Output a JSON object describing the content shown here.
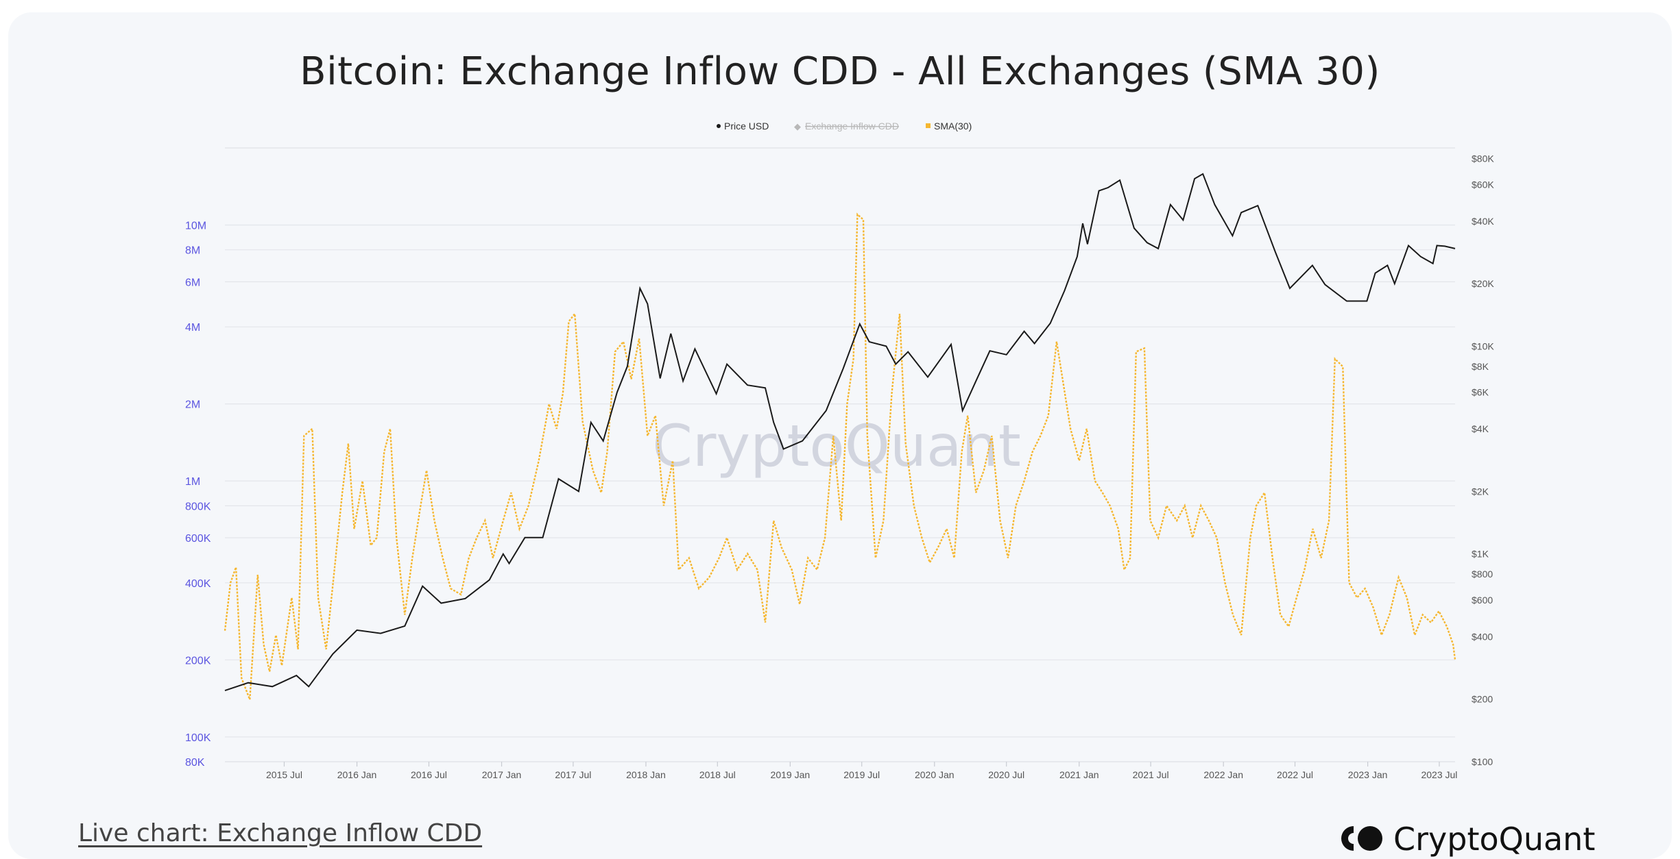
{
  "title": "Bitcoin: Exchange Inflow CDD - All Exchanges (SMA 30)",
  "watermark": "CryptoQuant",
  "footer": {
    "live_chart": "Live chart: Exchange Inflow CDD",
    "brand": "CryptoQuant"
  },
  "colors": {
    "price": "#1a1a1a",
    "sma": "#f5b731",
    "left_axis": "#5b55e0",
    "right_axis": "#555555",
    "grid": "#e3e5ea",
    "legend_disabled": "#b8b8b8"
  },
  "chart_data": {
    "type": "line",
    "legend": {
      "placement": "top-center",
      "items": [
        {
          "label": "Price USD",
          "enabled": true
        },
        {
          "label": "Exchange Inflow CDD",
          "enabled": false
        },
        {
          "label": "SMA(30)",
          "enabled": true
        }
      ]
    },
    "x_ticks": [
      "2015 Jul",
      "2016 Jan",
      "2016 Jul",
      "2017 Jan",
      "2017 Jul",
      "2018 Jan",
      "2018 Jul",
      "2019 Jan",
      "2019 Jul",
      "2020 Jan",
      "2020 Jul",
      "2021 Jan",
      "2021 Jul",
      "2022 Jan",
      "2022 Jul",
      "2023 Jan",
      "2023 Jul"
    ],
    "xlim": [
      "2015-02-01",
      "2023-08-10"
    ],
    "y_left": {
      "scale": "log",
      "range": [
        80000,
        20000000
      ],
      "ticks": [
        "80K",
        "100K",
        "200K",
        "400K",
        "600K",
        "800K",
        "1M",
        "2M",
        "4M",
        "6M",
        "8M",
        "10M"
      ],
      "tick_values": [
        80000,
        100000,
        200000,
        400000,
        600000,
        800000,
        1000000,
        2000000,
        4000000,
        6000000,
        8000000,
        10000000
      ]
    },
    "y_right": {
      "scale": "log",
      "range": [
        100,
        90000
      ],
      "ticks": [
        "$100",
        "$200",
        "$400",
        "$600",
        "$800",
        "$1K",
        "$2K",
        "$4K",
        "$6K",
        "$8K",
        "$10K",
        "$20K",
        "$40K",
        "$60K",
        "$80K"
      ],
      "tick_values": [
        100,
        200,
        400,
        600,
        800,
        1000,
        2000,
        4000,
        6000,
        8000,
        10000,
        20000,
        40000,
        60000,
        80000
      ]
    },
    "grid": true,
    "series": [
      {
        "name": "Price USD",
        "axis": "right",
        "points": [
          [
            "2015-02-01",
            220
          ],
          [
            "2015-04-01",
            240
          ],
          [
            "2015-06-01",
            230
          ],
          [
            "2015-08-01",
            260
          ],
          [
            "2015-09-01",
            230
          ],
          [
            "2015-11-01",
            330
          ],
          [
            "2016-01-01",
            430
          ],
          [
            "2016-03-01",
            415
          ],
          [
            "2016-05-01",
            450
          ],
          [
            "2016-06-15",
            700
          ],
          [
            "2016-08-01",
            580
          ],
          [
            "2016-10-01",
            610
          ],
          [
            "2016-12-01",
            750
          ],
          [
            "2017-01-05",
            1000
          ],
          [
            "2017-01-20",
            900
          ],
          [
            "2017-03-01",
            1200
          ],
          [
            "2017-04-15",
            1200
          ],
          [
            "2017-05-25",
            2300
          ],
          [
            "2017-07-15",
            2000
          ],
          [
            "2017-08-15",
            4300
          ],
          [
            "2017-09-15",
            3500
          ],
          [
            "2017-10-20",
            6000
          ],
          [
            "2017-11-15",
            8000
          ],
          [
            "2017-12-17",
            19000
          ],
          [
            "2018-01-05",
            16000
          ],
          [
            "2018-02-06",
            7000
          ],
          [
            "2018-03-05",
            11500
          ],
          [
            "2018-04-05",
            6800
          ],
          [
            "2018-05-05",
            9700
          ],
          [
            "2018-06-28",
            5900
          ],
          [
            "2018-07-25",
            8200
          ],
          [
            "2018-09-15",
            6500
          ],
          [
            "2018-10-30",
            6300
          ],
          [
            "2018-11-20",
            4300
          ],
          [
            "2018-12-15",
            3200
          ],
          [
            "2019-02-01",
            3500
          ],
          [
            "2019-04-02",
            4900
          ],
          [
            "2019-05-15",
            7800
          ],
          [
            "2019-06-26",
            12800
          ],
          [
            "2019-07-20",
            10500
          ],
          [
            "2019-09-01",
            10000
          ],
          [
            "2019-09-25",
            8200
          ],
          [
            "2019-10-26",
            9400
          ],
          [
            "2019-12-15",
            7100
          ],
          [
            "2020-02-12",
            10200
          ],
          [
            "2020-03-12",
            4900
          ],
          [
            "2020-04-15",
            6800
          ],
          [
            "2020-05-20",
            9500
          ],
          [
            "2020-07-01",
            9100
          ],
          [
            "2020-08-15",
            11800
          ],
          [
            "2020-09-10",
            10300
          ],
          [
            "2020-10-20",
            12900
          ],
          [
            "2020-11-25",
            18500
          ],
          [
            "2020-12-27",
            27000
          ],
          [
            "2021-01-10",
            39000
          ],
          [
            "2021-01-22",
            31000
          ],
          [
            "2021-02-20",
            56000
          ],
          [
            "2021-03-15",
            58000
          ],
          [
            "2021-04-14",
            63000
          ],
          [
            "2021-05-20",
            37000
          ],
          [
            "2021-06-22",
            31500
          ],
          [
            "2021-07-20",
            29500
          ],
          [
            "2021-08-20",
            48000
          ],
          [
            "2021-09-21",
            40500
          ],
          [
            "2021-10-20",
            64000
          ],
          [
            "2021-11-10",
            67500
          ],
          [
            "2021-12-10",
            48000
          ],
          [
            "2022-01-24",
            34000
          ],
          [
            "2022-02-15",
            44000
          ],
          [
            "2022-03-29",
            47500
          ],
          [
            "2022-05-12",
            28500
          ],
          [
            "2022-06-18",
            19000
          ],
          [
            "2022-08-14",
            24500
          ],
          [
            "2022-09-15",
            19800
          ],
          [
            "2022-11-09",
            16500
          ],
          [
            "2022-12-30",
            16500
          ],
          [
            "2023-01-20",
            22500
          ],
          [
            "2023-02-20",
            24500
          ],
          [
            "2023-03-10",
            20000
          ],
          [
            "2023-04-14",
            30500
          ],
          [
            "2023-05-15",
            27000
          ],
          [
            "2023-06-15",
            25000
          ],
          [
            "2023-06-25",
            30500
          ],
          [
            "2023-07-15",
            30300
          ],
          [
            "2023-08-10",
            29500
          ]
        ]
      },
      {
        "name": "SMA(30)",
        "axis": "left",
        "points": [
          [
            "2015-02-01",
            260000
          ],
          [
            "2015-02-15",
            400000
          ],
          [
            "2015-03-01",
            460000
          ],
          [
            "2015-03-15",
            170000
          ],
          [
            "2015-04-05",
            140000
          ],
          [
            "2015-04-25",
            430000
          ],
          [
            "2015-05-10",
            230000
          ],
          [
            "2015-05-25",
            180000
          ],
          [
            "2015-06-10",
            250000
          ],
          [
            "2015-06-25",
            190000
          ],
          [
            "2015-07-20",
            350000
          ],
          [
            "2015-08-05",
            220000
          ],
          [
            "2015-08-20",
            1500000
          ],
          [
            "2015-09-10",
            1600000
          ],
          [
            "2015-09-25",
            350000
          ],
          [
            "2015-10-15",
            220000
          ],
          [
            "2015-11-05",
            450000
          ],
          [
            "2015-11-25",
            900000
          ],
          [
            "2015-12-10",
            1400000
          ],
          [
            "2015-12-25",
            650000
          ],
          [
            "2016-01-15",
            1000000
          ],
          [
            "2016-02-05",
            560000
          ],
          [
            "2016-02-20",
            600000
          ],
          [
            "2016-03-10",
            1300000
          ],
          [
            "2016-03-25",
            1600000
          ],
          [
            "2016-04-10",
            600000
          ],
          [
            "2016-05-01",
            300000
          ],
          [
            "2016-05-20",
            500000
          ],
          [
            "2016-06-10",
            800000
          ],
          [
            "2016-06-25",
            1100000
          ],
          [
            "2016-07-15",
            700000
          ],
          [
            "2016-08-05",
            500000
          ],
          [
            "2016-08-25",
            380000
          ],
          [
            "2016-09-20",
            360000
          ],
          [
            "2016-10-10",
            500000
          ],
          [
            "2016-10-30",
            600000
          ],
          [
            "2016-11-20",
            700000
          ],
          [
            "2016-12-10",
            500000
          ],
          [
            "2017-01-05",
            700000
          ],
          [
            "2017-01-25",
            900000
          ],
          [
            "2017-02-15",
            650000
          ],
          [
            "2017-03-10",
            800000
          ],
          [
            "2017-04-05",
            1200000
          ],
          [
            "2017-05-01",
            2000000
          ],
          [
            "2017-05-20",
            1600000
          ],
          [
            "2017-06-05",
            2200000
          ],
          [
            "2017-06-20",
            4200000
          ],
          [
            "2017-07-05",
            4500000
          ],
          [
            "2017-07-25",
            1700000
          ],
          [
            "2017-08-20",
            1100000
          ],
          [
            "2017-09-10",
            900000
          ],
          [
            "2017-09-25",
            1300000
          ],
          [
            "2017-10-15",
            3200000
          ],
          [
            "2017-11-05",
            3500000
          ],
          [
            "2017-11-25",
            2500000
          ],
          [
            "2017-12-15",
            3600000
          ],
          [
            "2018-01-05",
            1500000
          ],
          [
            "2018-01-25",
            1800000
          ],
          [
            "2018-02-15",
            800000
          ],
          [
            "2018-03-10",
            1200000
          ],
          [
            "2018-03-25",
            450000
          ],
          [
            "2018-04-20",
            500000
          ],
          [
            "2018-05-15",
            380000
          ],
          [
            "2018-06-10",
            420000
          ],
          [
            "2018-07-05",
            500000
          ],
          [
            "2018-07-25",
            600000
          ],
          [
            "2018-08-20",
            450000
          ],
          [
            "2018-09-15",
            520000
          ],
          [
            "2018-10-10",
            450000
          ],
          [
            "2018-10-30",
            280000
          ],
          [
            "2018-11-20",
            700000
          ],
          [
            "2018-12-10",
            550000
          ],
          [
            "2019-01-05",
            450000
          ],
          [
            "2019-01-25",
            330000
          ],
          [
            "2019-02-15",
            500000
          ],
          [
            "2019-03-10",
            450000
          ],
          [
            "2019-03-30",
            600000
          ],
          [
            "2019-04-20",
            1500000
          ],
          [
            "2019-05-10",
            700000
          ],
          [
            "2019-05-25",
            2000000
          ],
          [
            "2019-06-10",
            3000000
          ],
          [
            "2019-06-20",
            11000000
          ],
          [
            "2019-07-05",
            10500000
          ],
          [
            "2019-07-15",
            1500000
          ],
          [
            "2019-08-05",
            500000
          ],
          [
            "2019-08-25",
            700000
          ],
          [
            "2019-09-15",
            2200000
          ],
          [
            "2019-10-05",
            4500000
          ],
          [
            "2019-10-20",
            1400000
          ],
          [
            "2019-11-10",
            800000
          ],
          [
            "2019-11-30",
            600000
          ],
          [
            "2019-12-20",
            480000
          ],
          [
            "2020-01-10",
            550000
          ],
          [
            "2020-02-01",
            650000
          ],
          [
            "2020-02-20",
            500000
          ],
          [
            "2020-03-10",
            1300000
          ],
          [
            "2020-03-25",
            1800000
          ],
          [
            "2020-04-15",
            900000
          ],
          [
            "2020-05-05",
            1100000
          ],
          [
            "2020-05-25",
            1500000
          ],
          [
            "2020-06-15",
            700000
          ],
          [
            "2020-07-05",
            500000
          ],
          [
            "2020-07-25",
            800000
          ],
          [
            "2020-08-15",
            1000000
          ],
          [
            "2020-09-05",
            1300000
          ],
          [
            "2020-09-25",
            1500000
          ],
          [
            "2020-10-15",
            1800000
          ],
          [
            "2020-11-05",
            3500000
          ],
          [
            "2020-11-20",
            2500000
          ],
          [
            "2020-12-10",
            1600000
          ],
          [
            "2021-01-01",
            1200000
          ],
          [
            "2021-01-20",
            1600000
          ],
          [
            "2021-02-10",
            1000000
          ],
          [
            "2021-03-01",
            900000
          ],
          [
            "2021-03-20",
            800000
          ],
          [
            "2021-04-10",
            650000
          ],
          [
            "2021-04-25",
            450000
          ],
          [
            "2021-05-10",
            500000
          ],
          [
            "2021-05-25",
            3200000
          ],
          [
            "2021-06-15",
            3300000
          ],
          [
            "2021-06-30",
            700000
          ],
          [
            "2021-07-20",
            600000
          ],
          [
            "2021-08-10",
            800000
          ],
          [
            "2021-09-05",
            700000
          ],
          [
            "2021-09-25",
            800000
          ],
          [
            "2021-10-15",
            600000
          ],
          [
            "2021-11-05",
            800000
          ],
          [
            "2021-11-25",
            700000
          ],
          [
            "2021-12-15",
            600000
          ],
          [
            "2022-01-05",
            400000
          ],
          [
            "2022-01-25",
            300000
          ],
          [
            "2022-02-15",
            250000
          ],
          [
            "2022-03-10",
            600000
          ],
          [
            "2022-03-25",
            800000
          ],
          [
            "2022-04-15",
            900000
          ],
          [
            "2022-05-05",
            500000
          ],
          [
            "2022-05-25",
            300000
          ],
          [
            "2022-06-15",
            270000
          ],
          [
            "2022-07-05",
            350000
          ],
          [
            "2022-07-25",
            450000
          ],
          [
            "2022-08-15",
            650000
          ],
          [
            "2022-09-05",
            500000
          ],
          [
            "2022-09-25",
            700000
          ],
          [
            "2022-10-10",
            3000000
          ],
          [
            "2022-10-30",
            2800000
          ],
          [
            "2022-11-15",
            400000
          ],
          [
            "2022-12-05",
            350000
          ],
          [
            "2022-12-25",
            380000
          ],
          [
            "2023-01-15",
            320000
          ],
          [
            "2023-02-05",
            250000
          ],
          [
            "2023-02-25",
            300000
          ],
          [
            "2023-03-20",
            420000
          ],
          [
            "2023-04-10",
            350000
          ],
          [
            "2023-04-30",
            250000
          ],
          [
            "2023-05-20",
            300000
          ],
          [
            "2023-06-10",
            280000
          ],
          [
            "2023-06-30",
            310000
          ],
          [
            "2023-07-20",
            270000
          ],
          [
            "2023-08-05",
            230000
          ],
          [
            "2023-08-10",
            200000
          ]
        ]
      }
    ]
  }
}
